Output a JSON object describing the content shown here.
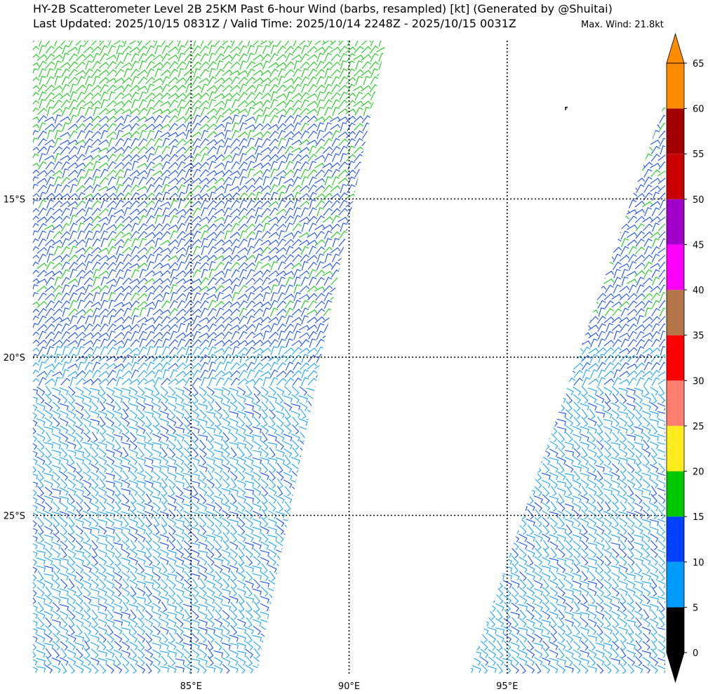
{
  "header": {
    "line1": "HY-2B Scatterometer Level 2B 25KM Past 6-hour Wind (barbs, resampled) [kt] (Generated by @Shuitai)",
    "line2": "Last Updated: 2025/10/15 0831Z / Valid Time: 2025/10/14 2248Z - 2025/10/15 0031Z",
    "max_wind": "Max. Wind: 21.8kt"
  },
  "map": {
    "lon_labels": [
      {
        "value": 85,
        "text": "85°E"
      },
      {
        "value": 90,
        "text": "90°E"
      },
      {
        "value": 95,
        "text": "95°E"
      }
    ],
    "lat_labels": [
      {
        "value": -15,
        "text": "15°S"
      },
      {
        "value": -20,
        "text": "20°S"
      },
      {
        "value": -25,
        "text": "25°S"
      }
    ],
    "extent": {
      "lon_min": 80,
      "lon_max": 100,
      "lat_min": -30,
      "lat_max": -10
    },
    "grid": "dotted"
  },
  "colorbar": {
    "ticks": [
      "65",
      "60",
      "55",
      "50",
      "45",
      "40",
      "35",
      "30",
      "25",
      "20",
      "15",
      "10",
      "5",
      "0"
    ],
    "bins": [
      {
        "from": 0,
        "to": 5,
        "color": "#000000"
      },
      {
        "from": 5,
        "to": 10,
        "color": "#009bff"
      },
      {
        "from": 10,
        "to": 15,
        "color": "#0040ff"
      },
      {
        "from": 15,
        "to": 20,
        "color": "#00c800"
      },
      {
        "from": 20,
        "to": 25,
        "color": "#ffeb1e"
      },
      {
        "from": 25,
        "to": 30,
        "color": "#ff7f6e"
      },
      {
        "from": 30,
        "to": 35,
        "color": "#ff0000"
      },
      {
        "from": 35,
        "to": 40,
        "color": "#b5764a"
      },
      {
        "from": 40,
        "to": 45,
        "color": "#ff00ff"
      },
      {
        "from": 45,
        "to": 50,
        "color": "#a000c8"
      },
      {
        "from": 50,
        "to": 55,
        "color": "#c80000"
      },
      {
        "from": 55,
        "to": 60,
        "color": "#a00000"
      },
      {
        "from": 60,
        "to": 65,
        "color": "#ff8c00"
      }
    ],
    "extend_top_color": "#ff8c00",
    "extend_bottom_color": "#000000"
  }
}
